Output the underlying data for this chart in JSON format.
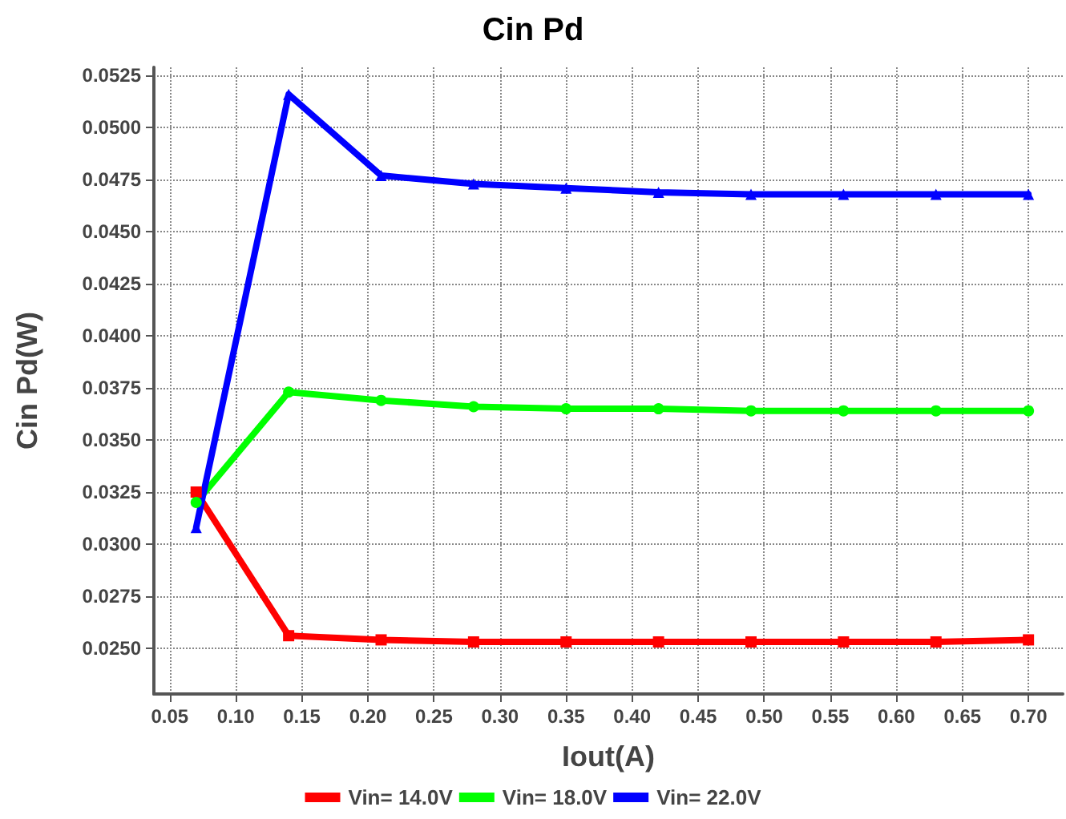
{
  "chart_data": {
    "type": "line",
    "title": "Cin Pd",
    "xlabel": "Iout(A)",
    "ylabel": "Cin Pd(W)",
    "x": [
      0.07,
      0.14,
      0.21,
      0.28,
      0.35,
      0.42,
      0.49,
      0.56,
      0.63,
      0.7
    ],
    "series": [
      {
        "name": "Vin= 14.0V",
        "color": "#ff0000",
        "marker": "square",
        "values": [
          0.0325,
          0.0256,
          0.0254,
          0.0253,
          0.0253,
          0.0253,
          0.0253,
          0.0253,
          0.0253,
          0.0254
        ]
      },
      {
        "name": "Vin= 18.0V",
        "color": "#00ff00",
        "marker": "circle",
        "values": [
          0.032,
          0.0373,
          0.0369,
          0.0366,
          0.0365,
          0.0365,
          0.0364,
          0.0364,
          0.0364,
          0.0364
        ]
      },
      {
        "name": "Vin= 22.0V",
        "color": "#0000ff",
        "marker": "triangle",
        "values": [
          0.0308,
          0.0516,
          0.0477,
          0.0473,
          0.0471,
          0.0469,
          0.0468,
          0.0468,
          0.0468,
          0.0468
        ]
      }
    ],
    "xlim": [
      0.038,
      0.726
    ],
    "xticks": [
      0.05,
      {
        "value": 0.1,
        "label": "0.10"
      },
      0.15,
      {
        "value": 0.2,
        "label": "0.20"
      },
      0.25,
      {
        "value": 0.3,
        "label": "0.30"
      },
      0.35,
      {
        "value": 0.4,
        "label": "0.40"
      },
      0.45,
      {
        "value": 0.5,
        "label": "0.50"
      },
      0.55,
      {
        "value": 0.6,
        "label": "0.60"
      },
      0.65,
      {
        "value": 0.7,
        "label": "0.70"
      }
    ],
    "ylim": [
      0.0228,
      0.0529
    ],
    "yticks": [
      {
        "value": 0.025,
        "label": "0.0250"
      },
      0.0275,
      {
        "value": 0.03,
        "label": "0.0300"
      },
      0.0325,
      {
        "value": 0.035,
        "label": "0.0350"
      },
      0.0375,
      {
        "value": 0.04,
        "label": "0.0400"
      },
      0.0425,
      {
        "value": 0.045,
        "label": "0.0450"
      },
      0.0475,
      {
        "value": 0.05,
        "label": "0.0500"
      },
      0.0525
    ],
    "grid": true,
    "legend": "bottom",
    "line_style": "solid"
  }
}
